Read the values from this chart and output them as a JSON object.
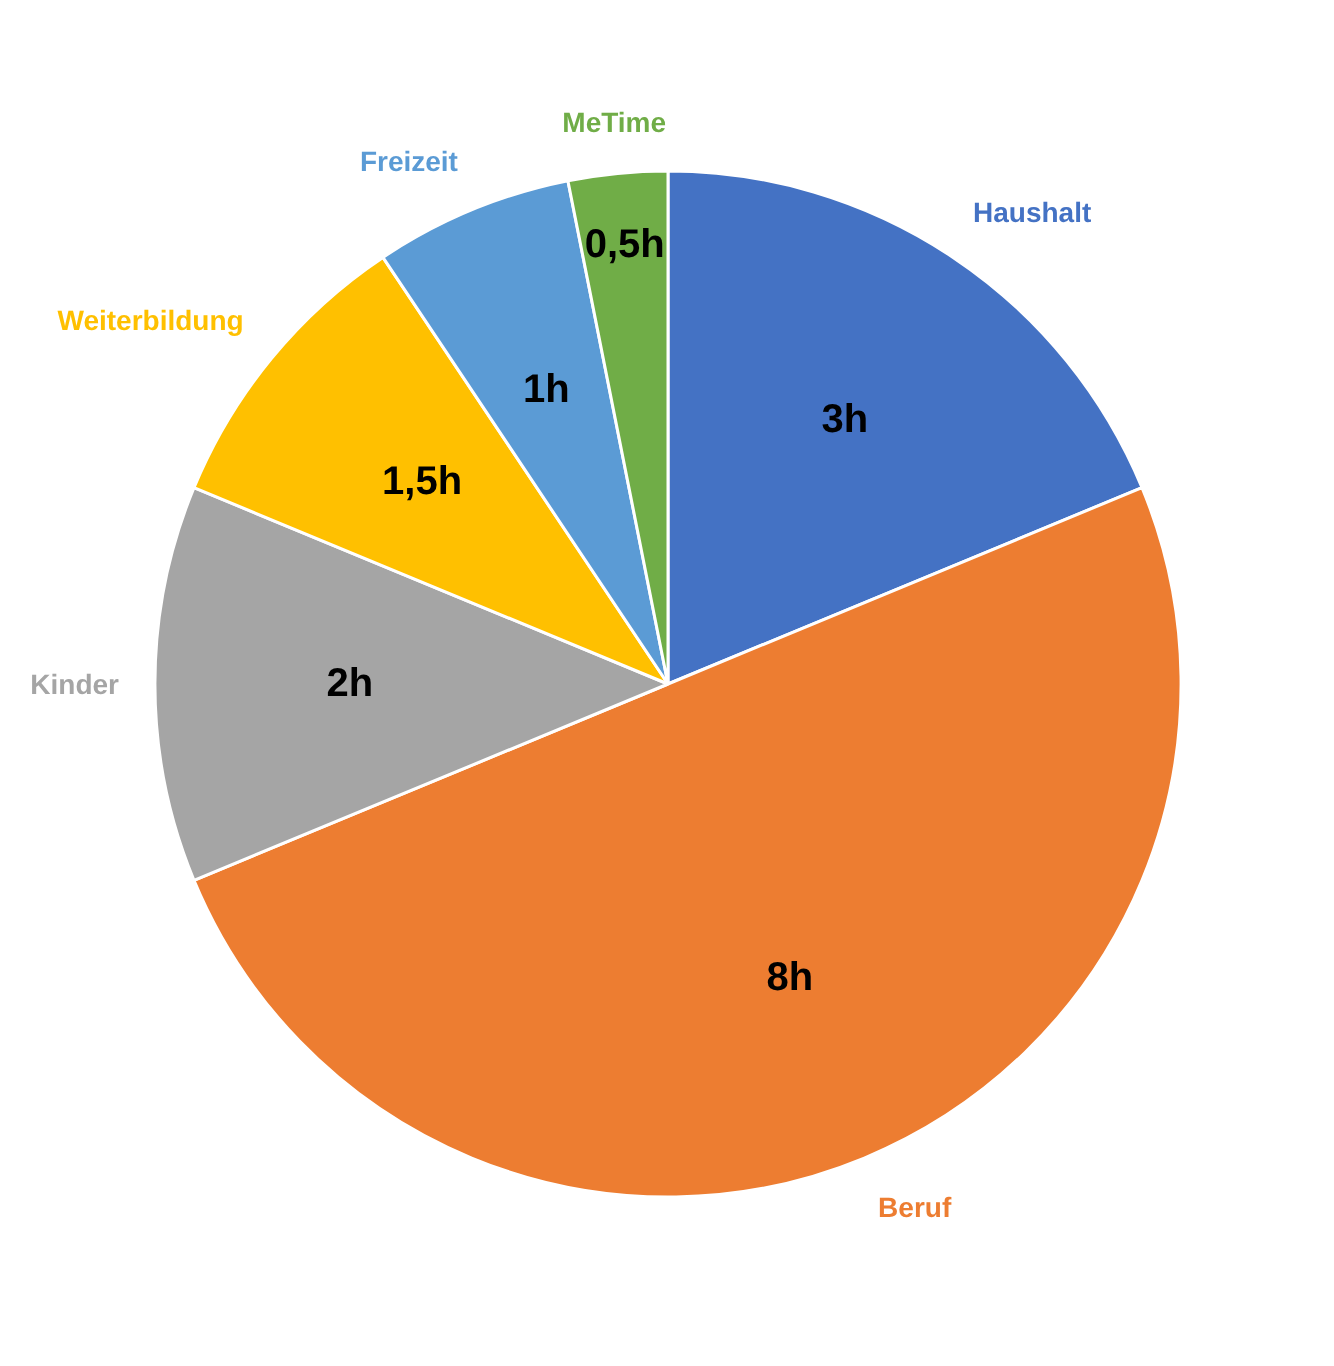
{
  "chart_data": {
    "type": "pie",
    "categories": [
      "Haushalt",
      "Beruf",
      "Kinder",
      "Weiterbildung",
      "Freizeit",
      "MeTime"
    ],
    "values": [
      3,
      8,
      2,
      1.5,
      1,
      0.5
    ],
    "colors": [
      "#4472c4",
      "#ed7d31",
      "#a5a5a5",
      "#ffc000",
      "#5b9bd5",
      "#70ad47"
    ],
    "value_labels": [
      "3h",
      "8h",
      "2h",
      "1,5h",
      "1h",
      "0,5h"
    ]
  }
}
